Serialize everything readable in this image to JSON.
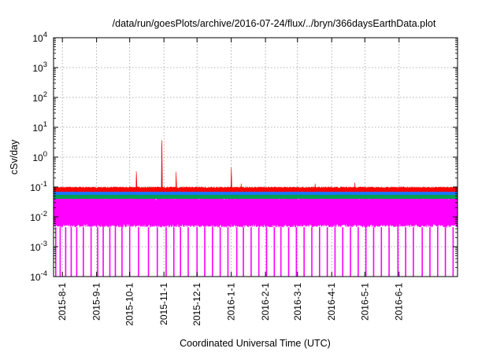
{
  "chart_data": {
    "type": "area",
    "title": "/data/run/goesPlots/archive/2016-07-24/flux/../bryn/366daysEarthData.plot",
    "xlabel": "Coordinated Universal Time (UTC)",
    "ylabel": "cSv/day",
    "yscale": "log",
    "ylim": [
      0.0001,
      10000
    ],
    "xlim": [
      "2015-07-24",
      "2016-07-24"
    ],
    "y_ticks": [
      {
        "value": 0.0001,
        "base": "10",
        "exp": "-4"
      },
      {
        "value": 0.001,
        "base": "10",
        "exp": "-3"
      },
      {
        "value": 0.01,
        "base": "10",
        "exp": "-2"
      },
      {
        "value": 0.1,
        "base": "10",
        "exp": "-1"
      },
      {
        "value": 1,
        "base": "10",
        "exp": "0"
      },
      {
        "value": 10,
        "base": "10",
        "exp": "1"
      },
      {
        "value": 100,
        "base": "10",
        "exp": "2"
      },
      {
        "value": 1000,
        "base": "10",
        "exp": "3"
      },
      {
        "value": 10000,
        "base": "10",
        "exp": "4"
      }
    ],
    "x_ticks": [
      {
        "date": "2015-08-01",
        "label": "2015-8-1"
      },
      {
        "date": "2015-09-01",
        "label": "2015-9-1"
      },
      {
        "date": "2015-10-01",
        "label": "2015-10-1"
      },
      {
        "date": "2015-11-01",
        "label": "2015-11-1"
      },
      {
        "date": "2015-12-01",
        "label": "2015-12-1"
      },
      {
        "date": "2016-01-01",
        "label": "2016-1-1"
      },
      {
        "date": "2016-02-01",
        "label": "2016-2-1"
      },
      {
        "date": "2016-03-01",
        "label": "2016-3-1"
      },
      {
        "date": "2016-04-01",
        "label": "2016-4-1"
      },
      {
        "date": "2016-05-01",
        "label": "2016-5-1"
      },
      {
        "date": "2016-06-01",
        "label": "2016-6-1"
      }
    ],
    "grid": true,
    "series": [
      {
        "color": "#ff0000",
        "baseline": 0.08,
        "low": 0.07,
        "high": 0.1,
        "spikes": [
          {
            "date": "2015-10-07",
            "value": 0.33
          },
          {
            "date": "2015-10-30",
            "value": 3.7
          },
          {
            "date": "2015-11-12",
            "value": 0.32
          },
          {
            "date": "2016-01-01",
            "value": 0.45
          },
          {
            "date": "2016-01-10",
            "value": 0.13
          },
          {
            "date": "2016-03-17",
            "value": 0.13
          },
          {
            "date": "2016-04-22",
            "value": 0.14
          }
        ]
      },
      {
        "color": "#1e73ff",
        "baseline": 0.065,
        "low": 0.055,
        "high": 0.085,
        "spikes": [
          {
            "date": "2015-10-07",
            "value": 0.2
          },
          {
            "date": "2015-10-30",
            "value": 2.0
          },
          {
            "date": "2015-11-12",
            "value": 0.18
          },
          {
            "date": "2016-01-01",
            "value": 0.25
          }
        ]
      },
      {
        "color": "#00a050",
        "baseline": 0.05,
        "low": 0.04,
        "high": 0.062,
        "spikes": [
          {
            "date": "2015-10-30",
            "value": 0.7
          }
        ]
      },
      {
        "color": "#ff00ff",
        "baseline": 0.02,
        "low": 0.0045,
        "high": 0.055,
        "spikes": [
          {
            "date": "2015-10-30",
            "value": 0.3
          }
        ]
      }
    ],
    "dropouts_to": 0.0001,
    "dropout_dates": [
      "2015-07-26",
      "2015-07-30",
      "2015-08-04",
      "2015-08-09",
      "2015-08-14",
      "2015-08-20",
      "2015-08-27",
      "2015-09-02",
      "2015-09-07",
      "2015-09-13",
      "2015-09-18",
      "2015-09-24",
      "2015-10-01",
      "2015-10-09",
      "2015-10-18",
      "2015-10-26",
      "2015-11-03",
      "2015-11-10",
      "2015-11-16",
      "2015-11-23",
      "2015-12-01",
      "2015-12-08",
      "2015-12-15",
      "2015-12-22",
      "2015-12-29",
      "2016-01-06",
      "2016-01-12",
      "2016-01-19",
      "2016-01-26",
      "2016-02-02",
      "2016-02-09",
      "2016-02-15",
      "2016-02-22",
      "2016-02-29",
      "2016-03-07",
      "2016-03-14",
      "2016-03-21",
      "2016-03-28",
      "2016-04-04",
      "2016-04-11",
      "2016-04-18",
      "2016-04-25",
      "2016-05-02",
      "2016-05-09",
      "2016-05-16",
      "2016-05-23",
      "2016-05-31",
      "2016-06-07",
      "2016-06-14",
      "2016-06-22",
      "2016-06-29",
      "2016-07-06",
      "2016-07-13",
      "2016-07-20"
    ]
  }
}
